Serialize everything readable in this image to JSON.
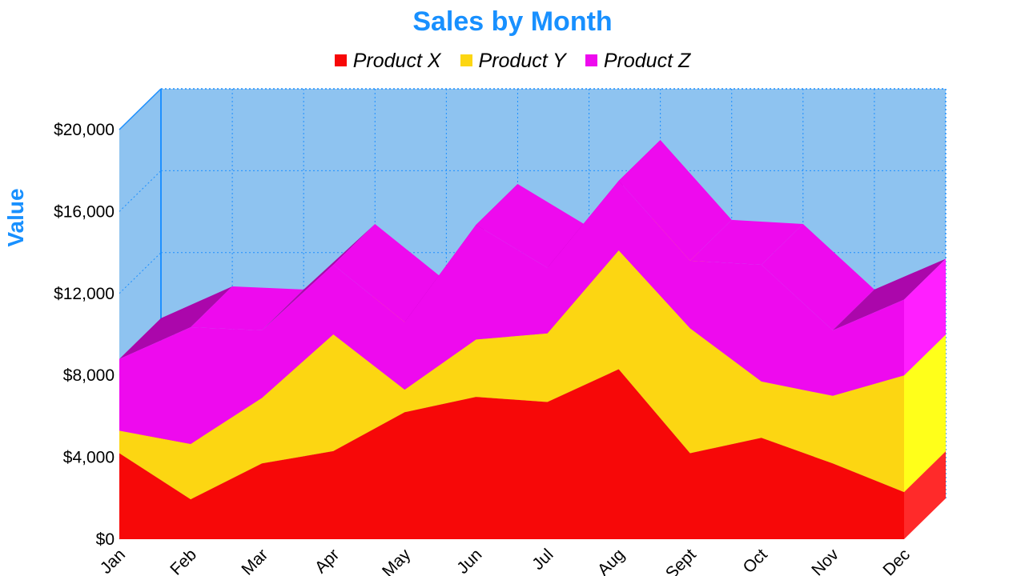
{
  "colors": {
    "title": "#1890ff",
    "plot_back": "#8ec3f0",
    "plot_wall": "#8ec3f0",
    "grid": "#1e90ff"
  },
  "chart_data": {
    "type": "area",
    "stacked": true,
    "three_d": true,
    "title": "Sales by Month",
    "ylabel": "Value",
    "xlabel": "",
    "ylim": [
      0,
      20000
    ],
    "y_ticks": [
      "$0",
      "$4,000",
      "$8,000",
      "$12,000",
      "$16,000",
      "$20,000"
    ],
    "y_tick_values": [
      0,
      4000,
      8000,
      12000,
      16000,
      20000
    ],
    "categories": [
      "Jan",
      "Feb",
      "Mar",
      "Apr",
      "May",
      "Jun",
      "Jul",
      "Aug",
      "Sept",
      "Oct",
      "Nov",
      "Dec"
    ],
    "legend_position": "top",
    "grid": true,
    "series": [
      {
        "name": "Product X",
        "color": "#f70808",
        "side_color": "#ff2a2a",
        "values": [
          4200,
          1950,
          3700,
          4300,
          6200,
          6950,
          6700,
          8300,
          4200,
          4950,
          3700,
          2300
        ]
      },
      {
        "name": "Product Y",
        "color": "#fcd612",
        "side_color": "#ffff1a",
        "values": [
          1100,
          2700,
          3200,
          5700,
          1100,
          2800,
          3350,
          5800,
          6100,
          2750,
          3300,
          5700
        ]
      },
      {
        "name": "Product Z",
        "color": "#ee0aee",
        "side_color": "#ff1fff",
        "values": [
          3500,
          5700,
          3300,
          3400,
          3300,
          5600,
          3200,
          3400,
          3300,
          5700,
          3200,
          3700
        ]
      }
    ]
  }
}
